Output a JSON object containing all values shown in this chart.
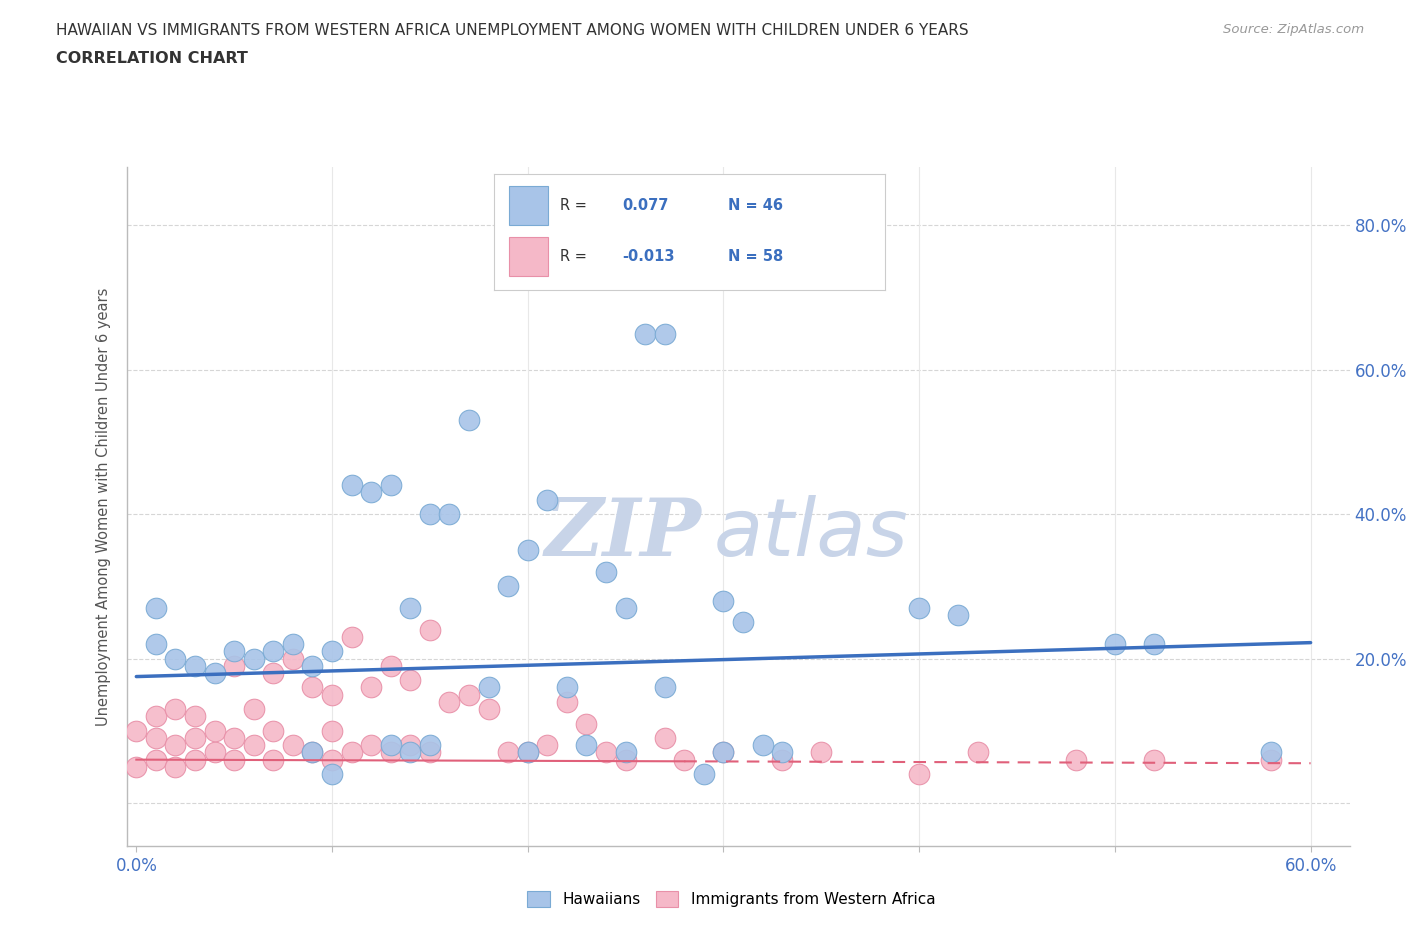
{
  "title_line1": "HAWAIIAN VS IMMIGRANTS FROM WESTERN AFRICA UNEMPLOYMENT AMONG WOMEN WITH CHILDREN UNDER 6 YEARS",
  "title_line2": "CORRELATION CHART",
  "source": "Source: ZipAtlas.com",
  "ylabel": "Unemployment Among Women with Children Under 6 years",
  "xlim": [
    -0.005,
    0.62
  ],
  "ylim": [
    -0.06,
    0.88
  ],
  "x_ticks": [
    0.0,
    0.1,
    0.2,
    0.3,
    0.4,
    0.5,
    0.6
  ],
  "x_tick_labels": [
    "0.0%",
    "",
    "",
    "",
    "",
    "",
    "60.0%"
  ],
  "y_ticks": [
    0.0,
    0.2,
    0.4,
    0.6,
    0.8
  ],
  "y_tick_labels_right": [
    "",
    "20.0%",
    "40.0%",
    "60.0%",
    "80.0%"
  ],
  "hawaiian_color": "#A8C4E8",
  "hawaiian_edge_color": "#7AAAD4",
  "hawaiian_line_color": "#3B6FBF",
  "immigrant_color": "#F5B8C8",
  "immigrant_edge_color": "#E890A8",
  "immigrant_line_color": "#E0607A",
  "hawaiian_line_x0": 0.0,
  "hawaiian_line_y0": 0.175,
  "hawaiian_line_x1": 0.6,
  "hawaiian_line_y1": 0.222,
  "immigrant_line_x0": 0.0,
  "immigrant_line_y0": 0.06,
  "immigrant_line_x1": 0.6,
  "immigrant_line_y1": 0.055,
  "hawaiian_scatter_x": [
    0.01,
    0.01,
    0.02,
    0.03,
    0.04,
    0.05,
    0.06,
    0.07,
    0.08,
    0.09,
    0.1,
    0.11,
    0.12,
    0.13,
    0.14,
    0.15,
    0.16,
    0.17,
    0.18,
    0.19,
    0.2,
    0.21,
    0.22,
    0.23,
    0.24,
    0.25,
    0.26,
    0.27,
    0.3,
    0.31,
    0.33,
    0.4,
    0.42,
    0.5,
    0.52,
    0.58,
    0.13,
    0.14,
    0.15,
    0.2,
    0.25,
    0.27,
    0.3,
    0.32,
    0.09,
    0.1,
    0.29
  ],
  "hawaiian_scatter_y": [
    0.27,
    0.22,
    0.2,
    0.19,
    0.18,
    0.21,
    0.2,
    0.21,
    0.22,
    0.19,
    0.21,
    0.44,
    0.43,
    0.44,
    0.27,
    0.4,
    0.4,
    0.53,
    0.16,
    0.3,
    0.35,
    0.42,
    0.16,
    0.08,
    0.32,
    0.27,
    0.65,
    0.65,
    0.28,
    0.25,
    0.07,
    0.27,
    0.26,
    0.22,
    0.22,
    0.07,
    0.08,
    0.07,
    0.08,
    0.07,
    0.07,
    0.16,
    0.07,
    0.08,
    0.07,
    0.04,
    0.04
  ],
  "immigrant_scatter_x": [
    0.0,
    0.0,
    0.01,
    0.01,
    0.01,
    0.02,
    0.02,
    0.02,
    0.03,
    0.03,
    0.03,
    0.04,
    0.04,
    0.05,
    0.05,
    0.05,
    0.06,
    0.06,
    0.07,
    0.07,
    0.07,
    0.08,
    0.08,
    0.09,
    0.09,
    0.1,
    0.1,
    0.1,
    0.11,
    0.11,
    0.12,
    0.12,
    0.13,
    0.13,
    0.14,
    0.14,
    0.15,
    0.15,
    0.16,
    0.17,
    0.18,
    0.19,
    0.2,
    0.21,
    0.22,
    0.23,
    0.24,
    0.25,
    0.27,
    0.28,
    0.3,
    0.33,
    0.35,
    0.4,
    0.43,
    0.48,
    0.52,
    0.58
  ],
  "immigrant_scatter_y": [
    0.05,
    0.1,
    0.06,
    0.09,
    0.12,
    0.05,
    0.08,
    0.13,
    0.06,
    0.09,
    0.12,
    0.07,
    0.1,
    0.06,
    0.09,
    0.19,
    0.08,
    0.13,
    0.06,
    0.1,
    0.18,
    0.08,
    0.2,
    0.07,
    0.16,
    0.06,
    0.1,
    0.15,
    0.07,
    0.23,
    0.08,
    0.16,
    0.07,
    0.19,
    0.08,
    0.17,
    0.07,
    0.24,
    0.14,
    0.15,
    0.13,
    0.07,
    0.07,
    0.08,
    0.14,
    0.11,
    0.07,
    0.06,
    0.09,
    0.06,
    0.07,
    0.06,
    0.07,
    0.04,
    0.07,
    0.06,
    0.06,
    0.06
  ],
  "background_color": "#FFFFFF",
  "grid_h_color": "#CCCCCC",
  "grid_v_color": "#E8E8E8",
  "title_color": "#333333",
  "watermark_zip": "ZIP",
  "watermark_atlas": "atlas",
  "watermark_color": "#C8D4E8"
}
